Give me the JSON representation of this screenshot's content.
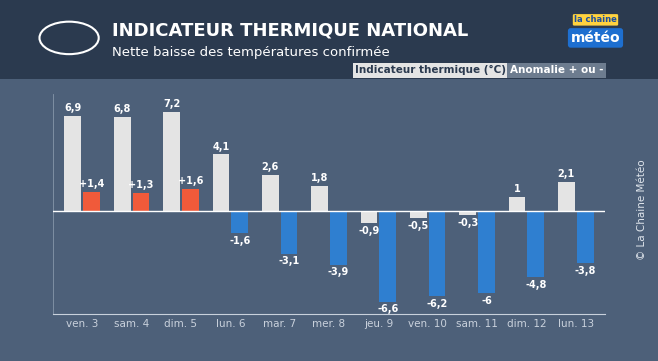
{
  "chart_data": {
    "type": "bar",
    "title": "INDICATEUR THERMIQUE NATIONAL",
    "subtitle": "Nette baisse des températures confirmée",
    "logo": [
      "la chaine",
      "météo"
    ],
    "credit": "© La Chaine Météo",
    "categories": [
      "ven. 3",
      "sam. 4",
      "dim. 5",
      "lun. 6",
      "mar. 7",
      "mer. 8",
      "jeu. 9",
      "ven. 10",
      "sam. 11",
      "dim. 12",
      "lun. 13"
    ],
    "series": [
      {
        "name": "Indicateur thermique (°C)",
        "color": "#e4e4e4",
        "values": [
          6.9,
          6.8,
          7.2,
          4.1,
          2.6,
          1.8,
          -0.9,
          -0.5,
          -0.3,
          1,
          2.1
        ],
        "value_labels": [
          "6,9",
          "6,8",
          "7,2",
          "4,1",
          "2,6",
          "1,8",
          "-0,9",
          "-0,5",
          "-0,3",
          "1",
          "2,1"
        ]
      },
      {
        "name": "Anomalie + ou -",
        "colors": [
          "#f05a3a",
          "#f05a3a",
          "#f05a3a",
          "#2f7fd0",
          "#2f7fd0",
          "#2f7fd0",
          "#2f7fd0",
          "#2f7fd0",
          "#2f7fd0",
          "#2f7fd0",
          "#2f7fd0"
        ],
        "values": [
          1.4,
          1.3,
          1.6,
          -1.6,
          -3.1,
          -3.9,
          -6.6,
          -6.2,
          -6,
          -4.8,
          -3.8
        ],
        "value_labels": [
          "+1,4",
          "+1,3",
          "+1,6",
          "-1,6",
          "-3,1",
          "-3,9",
          "-6,6",
          "-6,2",
          "-6",
          "-4,8",
          "-3,8"
        ]
      }
    ],
    "ylim": [
      -7.5,
      8.5
    ],
    "yticks": [],
    "data_labels": true,
    "tick_labels": "x"
  }
}
